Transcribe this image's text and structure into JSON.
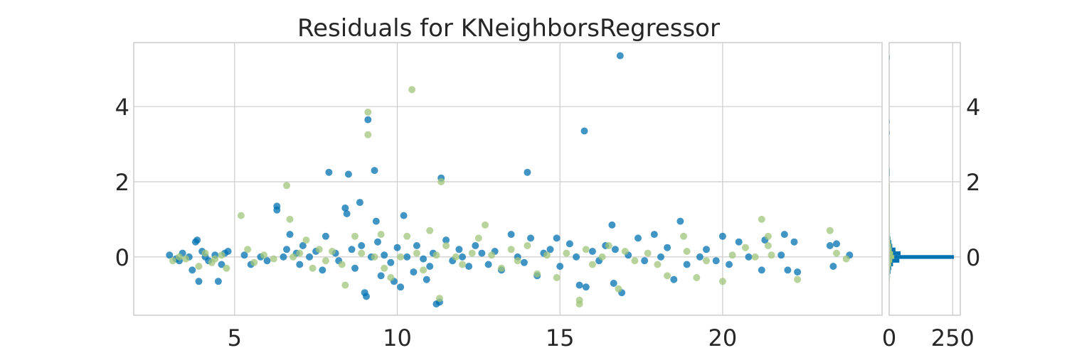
{
  "chart_data": [
    {
      "type": "scatter",
      "title": "Residuals for KNeighborsRegressor",
      "xlabel": "",
      "ylabel": "",
      "xlim": [
        1.9,
        24.9
      ],
      "ylim": [
        -1.55,
        5.7
      ],
      "xticks": [
        5,
        10,
        15,
        20
      ],
      "yticks": [
        0,
        2,
        4
      ],
      "grid": true,
      "colors": {
        "train": "#0072b2",
        "test": "#a0c67b",
        "grid": "#cccccc",
        "text": "#262626"
      },
      "series": [
        {
          "points": [
            [
              3.0,
              0.05
            ],
            [
              3.2,
              -0.05
            ],
            [
              3.4,
              0.1
            ],
            [
              3.6,
              0.0
            ],
            [
              3.8,
              0.4
            ],
            [
              3.85,
              0.45
            ],
            [
              3.9,
              -0.65
            ],
            [
              3.7,
              -0.35
            ],
            [
              4.0,
              0.15
            ],
            [
              4.2,
              -0.1
            ],
            [
              4.4,
              0.05
            ],
            [
              4.5,
              -0.65
            ],
            [
              4.7,
              0.1
            ],
            [
              4.8,
              0.15
            ],
            [
              3.3,
              -0.1
            ],
            [
              4.1,
              0.0
            ],
            [
              4.6,
              -0.2
            ],
            [
              5.3,
              0.05
            ],
            [
              5.5,
              -0.2
            ],
            [
              5.8,
              0.0
            ],
            [
              6.0,
              -0.1
            ],
            [
              6.3,
              1.35
            ],
            [
              6.3,
              1.25
            ],
            [
              6.5,
              0.0
            ],
            [
              6.6,
              0.2
            ],
            [
              6.7,
              0.6
            ],
            [
              6.9,
              0.1
            ],
            [
              7.0,
              -0.2
            ],
            [
              7.1,
              0.3
            ],
            [
              7.3,
              0.0
            ],
            [
              7.5,
              0.15
            ],
            [
              7.7,
              -0.35
            ],
            [
              7.8,
              0.55
            ],
            [
              7.9,
              2.25
            ],
            [
              8.1,
              0.1
            ],
            [
              8.2,
              -0.1
            ],
            [
              8.4,
              1.3
            ],
            [
              8.45,
              1.15
            ],
            [
              8.5,
              2.2
            ],
            [
              8.6,
              0.2
            ],
            [
              8.7,
              -0.3
            ],
            [
              8.85,
              1.45
            ],
            [
              8.9,
              0.3
            ],
            [
              9.0,
              -0.95
            ],
            [
              9.05,
              -1.05
            ],
            [
              9.1,
              3.65
            ],
            [
              9.2,
              0.0
            ],
            [
              9.3,
              2.3
            ],
            [
              9.35,
              0.95
            ],
            [
              9.4,
              0.4
            ],
            [
              9.5,
              -0.5
            ],
            [
              9.6,
              0.05
            ],
            [
              9.8,
              -0.15
            ],
            [
              9.9,
              -0.65
            ],
            [
              10.0,
              0.25
            ],
            [
              10.1,
              -0.8
            ],
            [
              10.2,
              1.1
            ],
            [
              10.3,
              0.0
            ],
            [
              10.5,
              -0.4
            ],
            [
              10.6,
              0.3
            ],
            [
              10.8,
              -0.05
            ],
            [
              10.9,
              -0.6
            ],
            [
              11.0,
              -0.25
            ],
            [
              11.1,
              0.1
            ],
            [
              11.2,
              -1.25
            ],
            [
              11.3,
              -1.2
            ],
            [
              11.35,
              2.1
            ],
            [
              11.5,
              0.45
            ],
            [
              11.7,
              -0.1
            ],
            [
              11.9,
              0.2
            ],
            [
              12.0,
              0.0
            ],
            [
              12.2,
              -0.25
            ],
            [
              12.4,
              0.3
            ],
            [
              12.6,
              0.1
            ],
            [
              12.8,
              -0.2
            ],
            [
              13.0,
              0.15
            ],
            [
              13.2,
              -0.35
            ],
            [
              13.5,
              0.6
            ],
            [
              13.7,
              0.0
            ],
            [
              13.9,
              -0.15
            ],
            [
              14.0,
              2.25
            ],
            [
              14.1,
              0.5
            ],
            [
              14.3,
              -0.5
            ],
            [
              14.5,
              0.1
            ],
            [
              14.7,
              0.2
            ],
            [
              14.9,
              0.5
            ],
            [
              15.0,
              -0.25
            ],
            [
              15.3,
              0.35
            ],
            [
              15.5,
              0.0
            ],
            [
              15.6,
              -0.75
            ],
            [
              15.75,
              3.35
            ],
            [
              15.8,
              -0.8
            ],
            [
              16.0,
              0.15
            ],
            [
              16.2,
              -0.1
            ],
            [
              16.4,
              0.3
            ],
            [
              16.6,
              0.85
            ],
            [
              16.65,
              -0.7
            ],
            [
              16.7,
              0.2
            ],
            [
              16.85,
              5.35
            ],
            [
              16.9,
              -0.95
            ],
            [
              17.1,
              0.05
            ],
            [
              17.4,
              0.5
            ],
            [
              17.6,
              -0.1
            ],
            [
              17.9,
              0.6
            ],
            [
              18.1,
              0.0
            ],
            [
              18.3,
              0.25
            ],
            [
              18.5,
              -0.6
            ],
            [
              18.7,
              0.95
            ],
            [
              18.9,
              -0.2
            ],
            [
              19.3,
              0.0
            ],
            [
              19.5,
              0.2
            ],
            [
              19.8,
              -0.1
            ],
            [
              20.0,
              0.55
            ],
            [
              20.2,
              -0.2
            ],
            [
              20.5,
              0.4
            ],
            [
              20.8,
              0.0
            ],
            [
              21.2,
              -0.35
            ],
            [
              21.3,
              0.45
            ],
            [
              21.8,
              0.05
            ],
            [
              21.9,
              0.6
            ],
            [
              22.0,
              -0.35
            ],
            [
              22.2,
              0.4
            ],
            [
              22.3,
              -0.4
            ],
            [
              23.3,
              0.3
            ],
            [
              23.5,
              0.35
            ],
            [
              23.4,
              -0.25
            ],
            [
              23.9,
              0.05
            ]
          ]
        },
        {
          "points": [
            [
              3.1,
              -0.1
            ],
            [
              3.3,
              0.0
            ],
            [
              3.5,
              -0.05
            ],
            [
              3.9,
              -0.25
            ],
            [
              4.1,
              0.1
            ],
            [
              4.3,
              -0.15
            ],
            [
              4.6,
              0.05
            ],
            [
              4.75,
              -0.3
            ],
            [
              4.4,
              -0.05
            ],
            [
              5.2,
              1.1
            ],
            [
              5.4,
              0.2
            ],
            [
              5.6,
              -0.15
            ],
            [
              5.9,
              0.05
            ],
            [
              6.2,
              -0.05
            ],
            [
              6.6,
              1.9
            ],
            [
              6.7,
              1.0
            ],
            [
              6.8,
              0.0
            ],
            [
              7.0,
              0.1
            ],
            [
              7.2,
              0.45
            ],
            [
              7.4,
              -0.3
            ],
            [
              7.6,
              0.2
            ],
            [
              7.8,
              -0.1
            ],
            [
              8.0,
              0.15
            ],
            [
              8.3,
              -0.2
            ],
            [
              8.4,
              -0.75
            ],
            [
              8.7,
              0.55
            ],
            [
              8.9,
              0.1
            ],
            [
              9.1,
              3.85
            ],
            [
              9.1,
              3.25
            ],
            [
              9.3,
              0.0
            ],
            [
              9.5,
              0.6
            ],
            [
              9.6,
              -0.3
            ],
            [
              9.8,
              -0.55
            ],
            [
              10.1,
              0.0
            ],
            [
              10.3,
              0.55
            ],
            [
              10.45,
              4.45
            ],
            [
              10.6,
              0.1
            ],
            [
              10.8,
              -0.35
            ],
            [
              11.0,
              0.7
            ],
            [
              11.2,
              0.05
            ],
            [
              11.3,
              -1.1
            ],
            [
              11.35,
              2.0
            ],
            [
              11.5,
              0.3
            ],
            [
              11.8,
              0.0
            ],
            [
              12.0,
              -0.2
            ],
            [
              12.3,
              0.1
            ],
            [
              12.5,
              0.5
            ],
            [
              12.7,
              0.85
            ],
            [
              12.9,
              0.05
            ],
            [
              13.2,
              -0.3
            ],
            [
              13.5,
              0.2
            ],
            [
              13.7,
              -0.1
            ],
            [
              14.0,
              0.3
            ],
            [
              14.3,
              -0.45
            ],
            [
              14.6,
              0.05
            ],
            [
              14.9,
              -0.55
            ],
            [
              15.2,
              0.1
            ],
            [
              15.6,
              -1.25
            ],
            [
              15.6,
              -1.15
            ],
            [
              15.8,
              0.2
            ],
            [
              16.0,
              -0.2
            ],
            [
              16.3,
              0.0
            ],
            [
              16.5,
              0.3
            ],
            [
              16.8,
              -0.85
            ],
            [
              17.0,
              0.15
            ],
            [
              17.3,
              -0.1
            ],
            [
              17.7,
              0.1
            ],
            [
              18.0,
              -0.2
            ],
            [
              18.3,
              -0.5
            ],
            [
              18.8,
              0.55
            ],
            [
              18.9,
              0.15
            ],
            [
              19.2,
              -0.55
            ],
            [
              19.5,
              -0.1
            ],
            [
              20.0,
              -0.65
            ],
            [
              20.3,
              0.05
            ],
            [
              20.7,
              0.25
            ],
            [
              21.0,
              0.0
            ],
            [
              21.2,
              1.0
            ],
            [
              21.4,
              0.55
            ],
            [
              21.4,
              0.3
            ],
            [
              21.5,
              0.05
            ],
            [
              22.3,
              -0.6
            ],
            [
              23.3,
              0.7
            ],
            [
              23.5,
              0.1
            ],
            [
              23.8,
              -0.05
            ]
          ]
        }
      ],
      "histogram": {
        "xlim": [
          0,
          280
        ],
        "xticks": [
          0,
          250
        ],
        "bin_width": 0.1,
        "train_bins": [
          [
            -0.6,
            2
          ],
          [
            -0.5,
            3
          ],
          [
            -0.4,
            5
          ],
          [
            -0.3,
            8
          ],
          [
            -0.2,
            15
          ],
          [
            -0.1,
            40
          ],
          [
            0.0,
            255
          ],
          [
            0.1,
            45
          ],
          [
            0.2,
            25
          ],
          [
            0.3,
            12
          ],
          [
            0.4,
            8
          ],
          [
            0.5,
            5
          ],
          [
            0.6,
            3
          ],
          [
            0.7,
            2
          ],
          [
            0.8,
            1
          ],
          [
            0.9,
            1
          ],
          [
            1.0,
            1
          ],
          [
            1.1,
            1
          ],
          [
            1.2,
            1
          ],
          [
            1.3,
            1
          ],
          [
            1.4,
            1
          ],
          [
            1.5,
            1
          ],
          [
            2.2,
            1
          ],
          [
            2.3,
            1
          ],
          [
            3.3,
            1
          ],
          [
            3.6,
            1
          ],
          [
            5.3,
            1
          ]
        ],
        "test_bins": [
          [
            -0.6,
            2
          ],
          [
            -0.5,
            2
          ],
          [
            -0.4,
            3
          ],
          [
            -0.3,
            5
          ],
          [
            -0.2,
            8
          ],
          [
            -0.1,
            12
          ],
          [
            0.0,
            20
          ],
          [
            0.1,
            15
          ],
          [
            0.2,
            10
          ],
          [
            0.3,
            8
          ],
          [
            0.4,
            5
          ],
          [
            0.5,
            4
          ],
          [
            0.6,
            3
          ],
          [
            0.7,
            2
          ],
          [
            0.8,
            1
          ],
          [
            0.9,
            1
          ],
          [
            1.0,
            1
          ],
          [
            1.1,
            1
          ],
          [
            1.2,
            1
          ],
          [
            1.3,
            1
          ],
          [
            1.4,
            1
          ],
          [
            1.5,
            1
          ],
          [
            1.6,
            1
          ],
          [
            1.7,
            1
          ],
          [
            1.8,
            1
          ],
          [
            1.9,
            1
          ]
        ]
      }
    }
  ]
}
